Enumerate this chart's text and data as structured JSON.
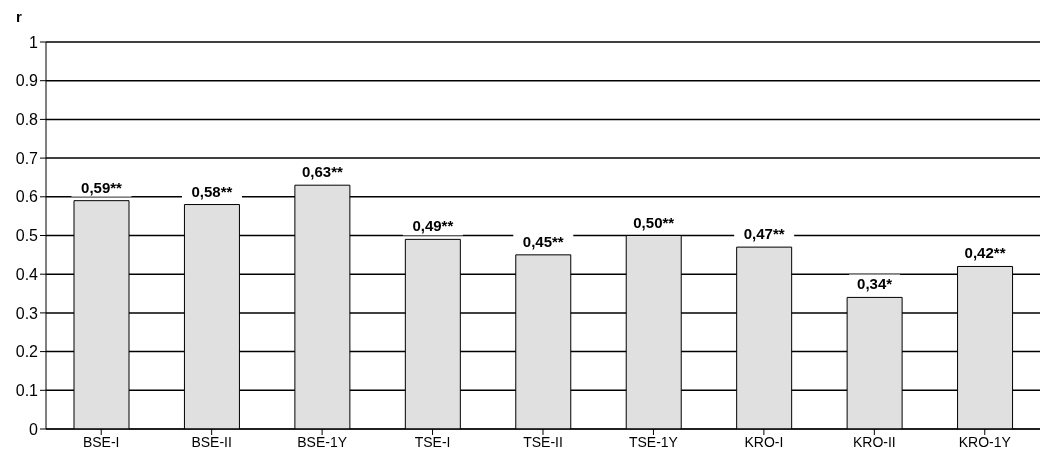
{
  "chart_data": {
    "type": "bar",
    "ylabel": "r",
    "categories": [
      "BSE-I",
      "BSE-II",
      "BSE-1Y",
      "TSE-I",
      "TSE-II",
      "TSE-1Y",
      "KRO-I",
      "KRO-II",
      "KRO-1Y"
    ],
    "values": [
      0.59,
      0.58,
      0.63,
      0.49,
      0.45,
      0.5,
      0.47,
      0.34,
      0.42
    ],
    "value_labels": [
      "0,59**",
      "0,58**",
      "0,63**",
      "0,49**",
      "0,45**",
      "0,50**",
      "0,47**",
      "0,34*",
      "0,42**"
    ],
    "color": "#e0e0e0",
    "ylim": [
      0,
      1
    ],
    "yticks": [
      0,
      0.1,
      0.2,
      0.3,
      0.4,
      0.5,
      0.6,
      0.7,
      0.8,
      0.9,
      1
    ],
    "grid": "y",
    "legend": false
  }
}
